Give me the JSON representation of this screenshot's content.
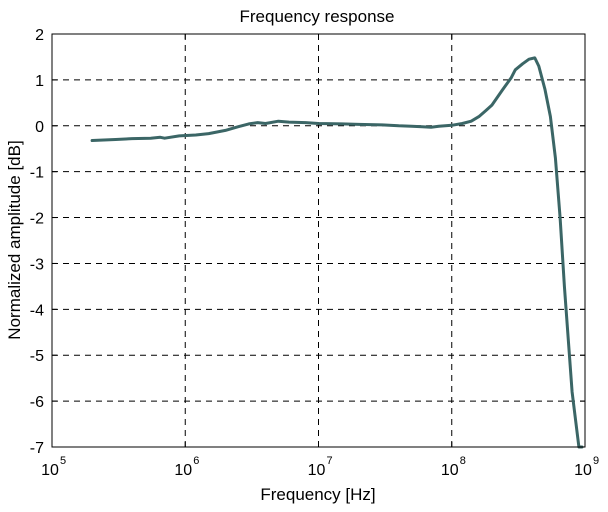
{
  "chart_data": {
    "type": "line",
    "title": "Frequency response",
    "xlabel": "Frequency [Hz]",
    "ylabel": "Normalized amplitude [dB]",
    "xscale": "log",
    "xlim": [
      100000,
      1000000000
    ],
    "ylim": [
      -7,
      2
    ],
    "grid": true,
    "grid_style": "dashed",
    "x_ticks": [
      {
        "value": 100000,
        "base": "10",
        "exp": "5"
      },
      {
        "value": 1000000,
        "base": "10",
        "exp": "6"
      },
      {
        "value": 10000000,
        "base": "10",
        "exp": "7"
      },
      {
        "value": 100000000,
        "base": "10",
        "exp": "8"
      },
      {
        "value": 1000000000,
        "base": "10",
        "exp": "9"
      }
    ],
    "y_ticks": [
      {
        "value": 2,
        "label": "2"
      },
      {
        "value": 1,
        "label": "1"
      },
      {
        "value": 0,
        "label": "0"
      },
      {
        "value": -1,
        "label": "-1"
      },
      {
        "value": -2,
        "label": "-2"
      },
      {
        "value": -3,
        "label": "-3"
      },
      {
        "value": -4,
        "label": "-4"
      },
      {
        "value": -5,
        "label": "-5"
      },
      {
        "value": -6,
        "label": "-6"
      },
      {
        "value": -7,
        "label": "-7"
      }
    ],
    "series": [
      {
        "color": "#3b6666",
        "x": [
          200000,
          300000,
          400000,
          550000,
          650000,
          700000,
          900000,
          1200000,
          1500000,
          2000000,
          2500000,
          3000000,
          3500000,
          4000000,
          5000000,
          6000000,
          8000000,
          10000000,
          15000000,
          20000000,
          30000000,
          40000000,
          50000000,
          60000000,
          70000000,
          80000000,
          100000000,
          120000000,
          140000000,
          160000000,
          180000000,
          200000000,
          240000000,
          280000000,
          300000000,
          340000000,
          380000000,
          420000000,
          450000000,
          500000000,
          550000000,
          600000000,
          650000000,
          700000000,
          800000000,
          900000000,
          950000000
        ],
        "y": [
          -0.32,
          -0.3,
          -0.28,
          -0.27,
          -0.25,
          -0.27,
          -0.22,
          -0.2,
          -0.17,
          -0.1,
          -0.02,
          0.04,
          0.07,
          0.05,
          0.1,
          0.08,
          0.07,
          0.05,
          0.04,
          0.03,
          0.02,
          0.0,
          -0.01,
          -0.02,
          -0.03,
          -0.01,
          0.01,
          0.05,
          0.1,
          0.2,
          0.33,
          0.45,
          0.78,
          1.05,
          1.22,
          1.35,
          1.45,
          1.48,
          1.3,
          0.8,
          0.2,
          -0.7,
          -2.0,
          -3.5,
          -5.8,
          -7.0,
          -7.0
        ]
      }
    ]
  }
}
